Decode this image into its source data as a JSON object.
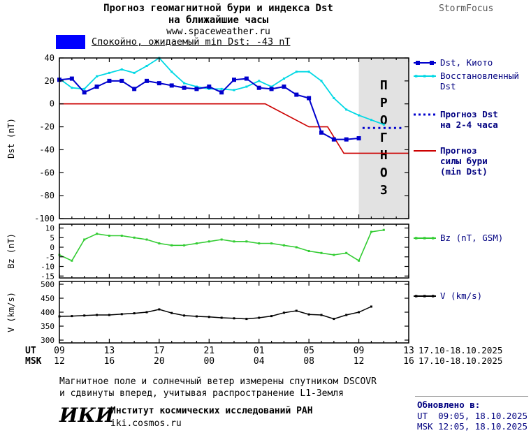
{
  "header": {
    "title_line1": "Прогноз геомагнитной бури и индекса Dst",
    "title_line2": "на ближайшие часы",
    "website": "www.spaceweather.ru",
    "brand": "StormFocus"
  },
  "banner": {
    "text": "Спокойно, ожидаемый min Dst: -43 nT",
    "swatch_color": "#0000ff"
  },
  "chart_data": {
    "type": "line",
    "title": "Прогноз геомагнитной бури и индекса Dst на ближайшие часы",
    "x_axis": {
      "xlim": [
        0,
        28
      ],
      "unit": "hours from 09 UT 17.10.2025",
      "tick_hours": [
        0,
        4,
        8,
        12,
        16,
        20,
        24,
        28
      ],
      "ut_row_label": "UT",
      "msk_row_label": "MSK",
      "ut_tick_labels": [
        "09",
        "13",
        "17",
        "21",
        "01",
        "05",
        "09",
        "13"
      ],
      "msk_tick_labels": [
        "12",
        "16",
        "20",
        "00",
        "04",
        "08",
        "12",
        "16"
      ],
      "ut_date_range": "17.10-18.10.2025",
      "msk_date_range": "17.10-18.10.2025"
    },
    "panels": [
      {
        "key": "dst",
        "ylabel": "Dst (nT)",
        "ylim": [
          -100,
          40
        ],
        "yticks": [
          40,
          20,
          0,
          -20,
          -40,
          -60,
          -80,
          -100
        ],
        "forecast_band": {
          "x_start": 24,
          "x_end": 28,
          "label": "ПРОГНОЗ",
          "fill": "#e2e2e2",
          "text_color": "#b5b5b5"
        },
        "series": [
          {
            "key": "forecast-storm",
            "name": "Прогноз силы бури (min Dst)",
            "color": "#cc0000",
            "width": 1.6,
            "x": [
              0,
              16.5,
              20,
              21.5,
              22.8,
              28
            ],
            "y": [
              0,
              0,
              -20,
              -20,
              -43,
              -43
            ]
          },
          {
            "key": "restored-dst",
            "name": "Восстановленный Dst",
            "color": "#00d8e4",
            "width": 1.8,
            "marker": 3,
            "x0": 0,
            "dx": 1,
            "y": [
              22,
              14,
              13,
              24,
              27,
              30,
              27,
              33,
              40,
              28,
              18,
              15,
              13,
              13,
              12,
              15,
              20,
              15,
              22,
              28,
              28,
              20,
              5,
              -5,
              -10,
              -14,
              -18
            ]
          },
          {
            "key": "dst-kyoto",
            "name": "Dst, Киото",
            "color": "#0000cd",
            "width": 2,
            "marker": 6,
            "x0": 0,
            "dx": 1,
            "y": [
              21,
              22,
              10,
              15,
              20,
              20,
              13,
              20,
              18,
              16,
              14,
              13,
              15,
              10,
              21,
              22,
              14,
              13,
              15,
              8,
              5,
              -25,
              -31,
              -31,
              -30
            ]
          },
          {
            "key": "forecast-dst",
            "name": "Прогноз Dst на 2-4 часа",
            "color": "#0000cd",
            "width": 3,
            "dash": "3 4.5",
            "x": [
              24.3,
              27.6
            ],
            "y": [
              -21,
              -21
            ]
          }
        ]
      },
      {
        "key": "bz",
        "ylabel": "Bz (nT)",
        "ylim": [
          -16,
          12
        ],
        "yticks": [
          10,
          5,
          0,
          -5,
          -10,
          -15
        ],
        "series": [
          {
            "key": "bz-gsm",
            "name": "Bz (nT, GSM)",
            "color": "#33cc33",
            "width": 1.6,
            "marker": 3,
            "x0": 0,
            "dx": 1,
            "y": [
              -4,
              -7,
              4,
              7,
              6,
              6,
              5,
              4,
              2,
              1,
              1,
              2,
              3,
              4,
              3,
              3,
              2,
              2,
              1,
              0,
              -2,
              -3,
              -4,
              -3,
              -7,
              8,
              9
            ]
          }
        ]
      },
      {
        "key": "v",
        "ylabel": "V (km/s)",
        "ylim": [
          290,
          510
        ],
        "yticks": [
          500,
          450,
          400,
          350,
          300
        ],
        "series": [
          {
            "key": "solar-wind-v",
            "name": "V (km/s)",
            "color": "#000000",
            "width": 1.5,
            "marker": 3,
            "x0": 0,
            "dx": 1,
            "y": [
              385,
              386,
              388,
              390,
              390,
              393,
              396,
              400,
              410,
              397,
              388,
              385,
              383,
              380,
              378,
              376,
              380,
              386,
              398,
              405,
              392,
              390,
              376,
              390,
              400,
              420
            ]
          }
        ]
      }
    ],
    "legend": [
      {
        "key": "dst-kyoto",
        "lines": [
          "Dst, Киото"
        ],
        "color": "#0000cd",
        "style": "squares",
        "bold": false
      },
      {
        "key": "restored-dst",
        "lines": [
          "Восстановленный",
          "Dst"
        ],
        "color": "#00d8e4",
        "style": "small-squares",
        "bold": false
      },
      {
        "key": "forecast-dst",
        "lines": [
          "Прогноз Dst",
          "на 2-4 часа"
        ],
        "color": "#0000cd",
        "style": "dotted",
        "bold": true
      },
      {
        "key": "forecast-storm",
        "lines": [
          "Прогноз",
          "силы бури",
          "(min Dst)"
        ],
        "color": "#cc0000",
        "style": "solid",
        "bold": true
      },
      {
        "key": "bz",
        "lines": [
          "Bz (nT, GSM)"
        ],
        "color": "#33cc33",
        "style": "small-squares",
        "bold": false
      },
      {
        "key": "v",
        "lines": [
          "V (km/s)"
        ],
        "color": "#000000",
        "style": "small-squares",
        "bold": false
      }
    ]
  },
  "footer": {
    "note_line1": "Магнитное поле и солнечный ветер измерены спутником DSCOVR",
    "note_line2": "и сдвинуты вперед, учитывая распространение L1-Земля",
    "institute_logo": "ИКИ",
    "institute_name": "Институт космических исследований РАН",
    "institute_site": "iki.cosmos.ru",
    "updated_label": "Обновлено в:",
    "updated_ut": "UT  09:05, 18.10.2025",
    "updated_msk": "MSK 12:05, 18.10.2025"
  }
}
